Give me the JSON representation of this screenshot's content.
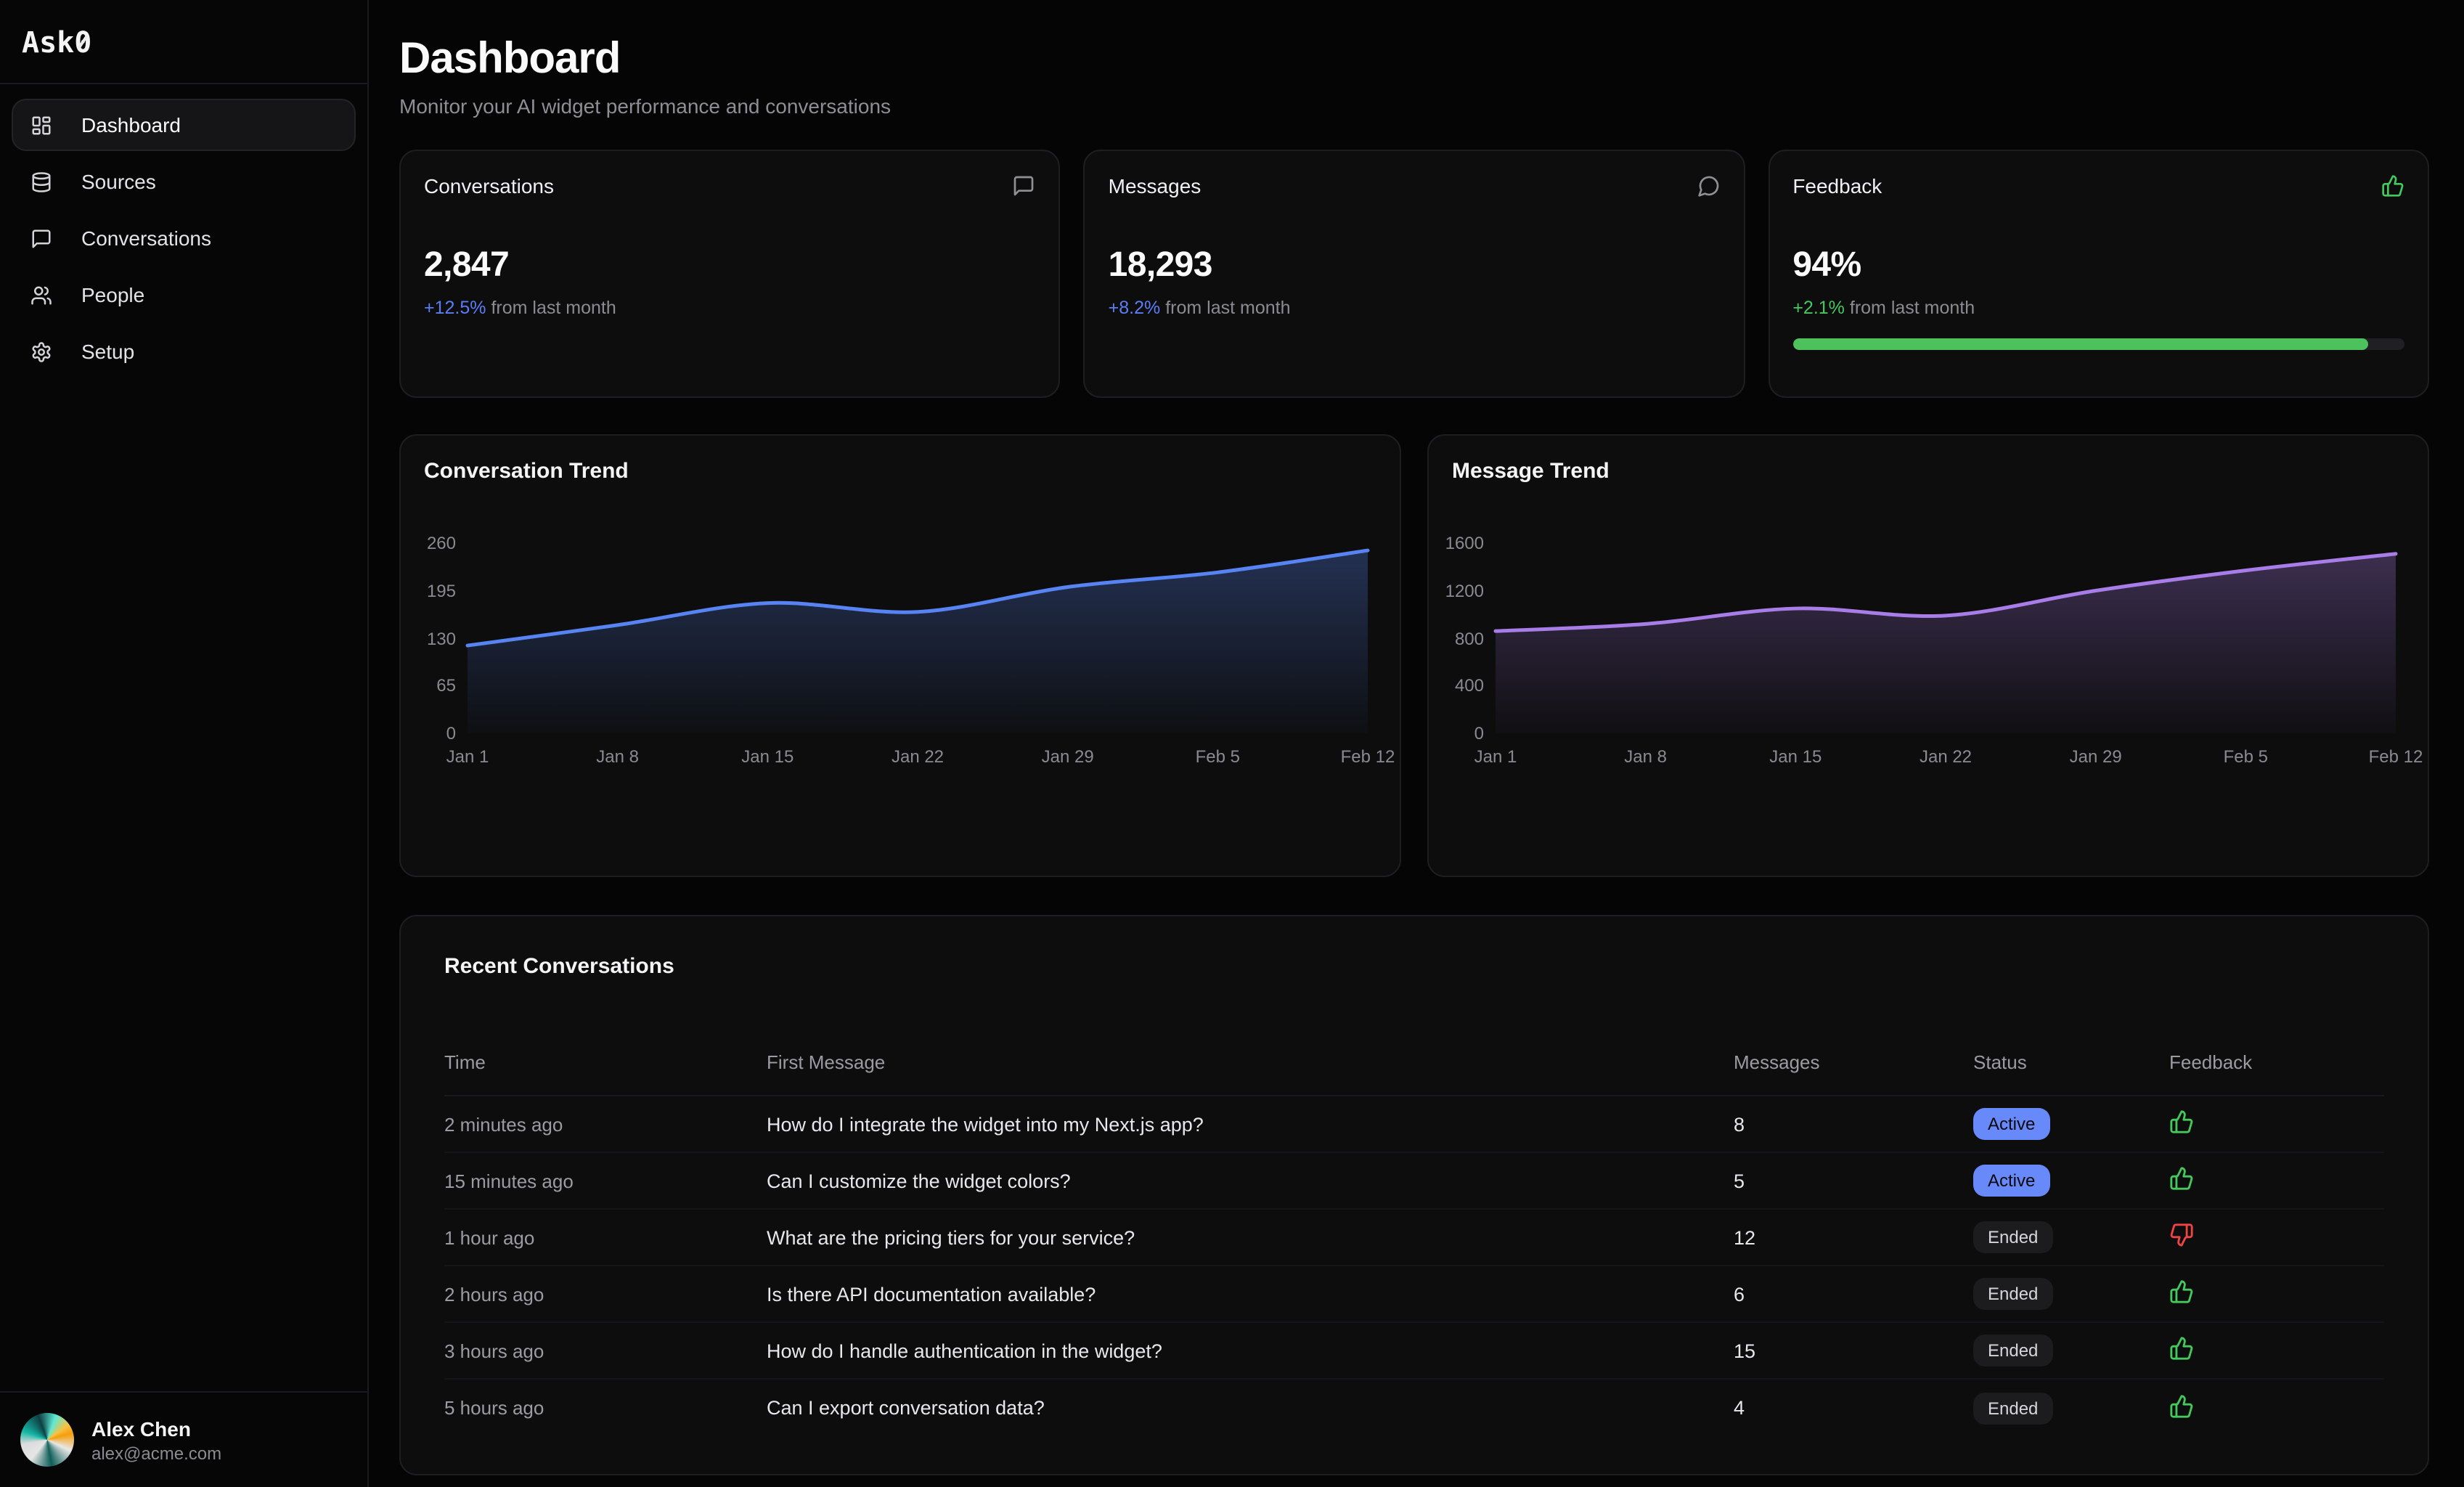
{
  "brand": {
    "name": "Ask0",
    "prefix": "Ask",
    "zero": "0"
  },
  "sidebar": {
    "items": [
      {
        "label": "Dashboard",
        "icon": "layout-dashboard",
        "active": true
      },
      {
        "label": "Sources",
        "icon": "database",
        "active": false
      },
      {
        "label": "Conversations",
        "icon": "message-square",
        "active": false
      },
      {
        "label": "People",
        "icon": "users",
        "active": false
      },
      {
        "label": "Setup",
        "icon": "settings",
        "active": false
      }
    ]
  },
  "user": {
    "name": "Alex Chen",
    "email": "alex@acme.com"
  },
  "header": {
    "title": "Dashboard",
    "subtitle": "Monitor your AI widget performance and conversations"
  },
  "stats": [
    {
      "title": "Conversations",
      "icon": "message-square",
      "value": "2,847",
      "delta": "+12.5%",
      "delta_note": "from last month",
      "delta_color": "#5b7ef7"
    },
    {
      "title": "Messages",
      "icon": "message-circle",
      "value": "18,293",
      "delta": "+8.2%",
      "delta_note": "from last month",
      "delta_color": "#5b7ef7"
    },
    {
      "title": "Feedback",
      "icon": "thumbs-up",
      "value": "94%",
      "delta": "+2.1%",
      "delta_note": "from last month",
      "delta_color": "#45c85c",
      "progress_pct": 94,
      "progress_color": "#4cc15c"
    }
  ],
  "chart_data": [
    {
      "type": "area",
      "title": "Conversation Trend",
      "x": [
        "Jan 1",
        "Jan 8",
        "Jan 15",
        "Jan 22",
        "Jan 29",
        "Feb 5",
        "Feb 12"
      ],
      "values": [
        120,
        148,
        178,
        166,
        200,
        220,
        250
      ],
      "yticks": [
        0,
        65,
        130,
        195,
        260
      ],
      "ymax": 260,
      "xlabel": "",
      "ylabel": "",
      "grid": false,
      "legend": "none",
      "line_color": "#5784f2"
    },
    {
      "type": "area",
      "title": "Message Trend",
      "x": [
        "Jan 1",
        "Jan 8",
        "Jan 15",
        "Jan 22",
        "Jan 29",
        "Feb 5",
        "Feb 12"
      ],
      "values": [
        860,
        920,
        1050,
        990,
        1200,
        1370,
        1510
      ],
      "yticks": [
        0,
        400,
        800,
        1200,
        1600
      ],
      "ymax": 1600,
      "xlabel": "",
      "ylabel": "",
      "grid": false,
      "legend": "none",
      "line_color": "#a97de8"
    }
  ],
  "table": {
    "title": "Recent Conversations",
    "columns": [
      "Time",
      "First Message",
      "Messages",
      "Status",
      "Feedback"
    ],
    "rows": [
      {
        "time": "2 minutes ago",
        "message": "How do I integrate the widget into my Next.js app?",
        "messages": "8",
        "status": "Active",
        "feedback": "up"
      },
      {
        "time": "15 minutes ago",
        "message": "Can I customize the widget colors?",
        "messages": "5",
        "status": "Active",
        "feedback": "up"
      },
      {
        "time": "1 hour ago",
        "message": "What are the pricing tiers for your service?",
        "messages": "12",
        "status": "Ended",
        "feedback": "down"
      },
      {
        "time": "2 hours ago",
        "message": "Is there API documentation available?",
        "messages": "6",
        "status": "Ended",
        "feedback": "up"
      },
      {
        "time": "3 hours ago",
        "message": "How do I handle authentication in the widget?",
        "messages": "15",
        "status": "Ended",
        "feedback": "up"
      },
      {
        "time": "5 hours ago",
        "message": "Can I export conversation data?",
        "messages": "4",
        "status": "Ended",
        "feedback": "up"
      }
    ]
  },
  "colors": {
    "background": "#050505",
    "card": "#0d0d0e",
    "border": "#1e1e21",
    "accent_blue": "#5b7ef7",
    "badge_active": "#6889fa",
    "green": "#45c85c",
    "red": "#ef4444",
    "line_blue": "#5784f2",
    "line_purple": "#a97de8"
  }
}
